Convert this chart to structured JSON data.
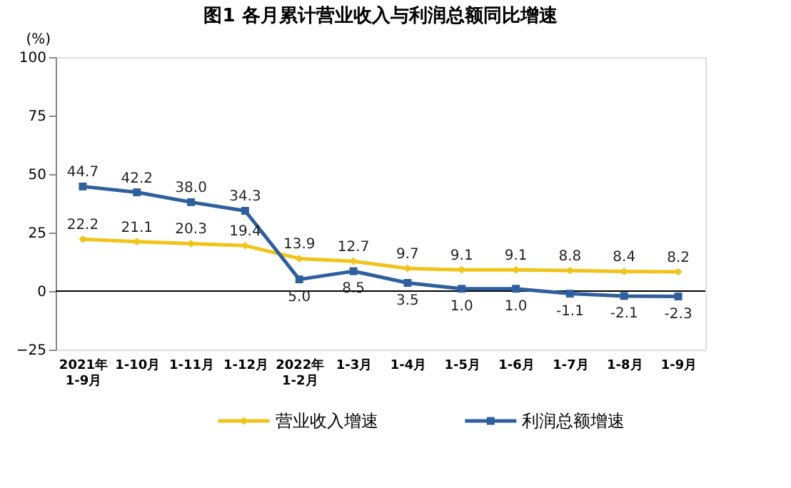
{
  "chart_data": {
    "type": "line",
    "title": "图1  各月累计营业收入与利润总额同比增速",
    "ylabel": "(%)",
    "categories": [
      "2021年\n1-9月",
      "1-10月",
      "1-11月",
      "1-12月",
      "2022年\n1-2月",
      "1-3月",
      "1-4月",
      "1-5月",
      "1-6月",
      "1-7月",
      "1-8月",
      "1-9月"
    ],
    "series": [
      {
        "name": "营业收入增速",
        "color": "#f0c419",
        "marker": "diamond",
        "values": [
          22.2,
          21.1,
          20.3,
          19.4,
          13.9,
          12.7,
          9.7,
          9.1,
          9.1,
          8.8,
          8.4,
          8.2
        ]
      },
      {
        "name": "利润总额增速",
        "color": "#2e5f9e",
        "marker": "square",
        "values": [
          44.7,
          42.2,
          38.0,
          34.3,
          5.0,
          8.5,
          3.5,
          1.0,
          1.0,
          -1.1,
          -2.1,
          -2.3
        ],
        "value_labels": [
          "44.7",
          "42.2",
          "38.0",
          "34.3",
          "5.0",
          "8.5",
          "3.5",
          "1.0",
          "1.0",
          "-1.1",
          "-2.1",
          "-2.3"
        ]
      }
    ],
    "ylim": [
      -25,
      100
    ],
    "yticks": [
      -25,
      0,
      25,
      50,
      75,
      100
    ],
    "ref_lines": [
      {
        "axis": "y",
        "value": 0,
        "color": "#000000"
      }
    ],
    "data_labels": true,
    "grid": false,
    "legend": "bottom",
    "line_style": "solid"
  }
}
